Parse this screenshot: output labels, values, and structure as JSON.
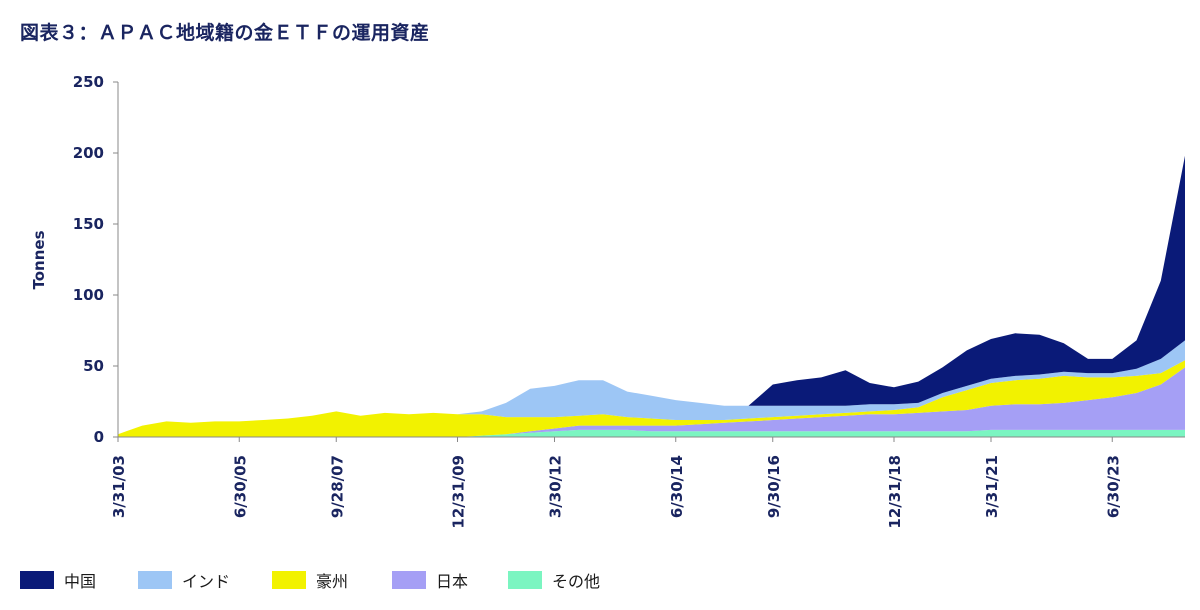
{
  "title": "図表３：ＡＰＡＣ地域籍の金ＥＴＦの運用資産",
  "chart_data": {
    "type": "area",
    "stacked": true,
    "title": "図表３：ＡＰＡＣ地域籍の金ＥＴＦの運用資産",
    "xlabel": "",
    "ylabel": "Tonnes",
    "ylim": [
      0,
      250
    ],
    "yticks": [
      0,
      50,
      100,
      150,
      200,
      250
    ],
    "xticks": [
      "3/31/03",
      "6/30/05",
      "9/28/07",
      "12/31/09",
      "3/30/12",
      "6/30/14",
      "9/30/16",
      "12/31/18",
      "3/31/21",
      "6/30/23"
    ],
    "legend_position": "bottom",
    "grid": false,
    "x": [
      "3/31/03",
      "9/30/03",
      "3/31/04",
      "9/30/04",
      "3/31/05",
      "9/30/05",
      "3/31/06",
      "9/30/06",
      "3/31/07",
      "9/30/07",
      "3/31/08",
      "9/30/08",
      "3/31/09",
      "9/30/09",
      "3/31/10",
      "9/30/10",
      "3/31/11",
      "9/30/11",
      "3/31/12",
      "9/30/12",
      "3/31/13",
      "9/30/13",
      "3/31/14",
      "9/30/14",
      "3/31/15",
      "9/30/15",
      "3/31/16",
      "9/30/16",
      "3/31/17",
      "9/30/17",
      "3/31/18",
      "9/30/18",
      "3/31/19",
      "9/30/19",
      "3/31/20",
      "9/30/20",
      "3/31/21",
      "9/30/21",
      "3/31/22",
      "9/30/22",
      "3/31/23",
      "9/30/23",
      "3/31/24",
      "9/30/24",
      "3/31/25"
    ],
    "series": [
      {
        "name": "その他",
        "color": "#7bf5c1",
        "values": [
          0,
          0,
          0,
          0,
          0,
          0,
          0,
          0,
          0,
          0,
          0,
          0,
          0,
          0,
          0,
          1,
          2,
          3,
          4,
          5,
          5,
          5,
          4,
          4,
          4,
          4,
          4,
          4,
          4,
          4,
          4,
          4,
          4,
          4,
          4,
          4,
          5,
          5,
          5,
          5,
          5,
          5,
          5,
          5,
          5
        ]
      },
      {
        "name": "日本",
        "color": "#a59ff5",
        "values": [
          0,
          0,
          0,
          0,
          0,
          0,
          0,
          0,
          0,
          0,
          0,
          0,
          0,
          0,
          0,
          0,
          0,
          1,
          2,
          3,
          3,
          3,
          4,
          4,
          5,
          6,
          7,
          8,
          9,
          10,
          11,
          12,
          12,
          13,
          14,
          15,
          17,
          18,
          18,
          19,
          21,
          23,
          26,
          32,
          44
        ]
      },
      {
        "name": "豪州",
        "color": "#f2f200",
        "values": [
          2,
          8,
          11,
          10,
          11,
          11,
          12,
          13,
          15,
          18,
          15,
          17,
          16,
          17,
          16,
          15,
          12,
          10,
          8,
          7,
          8,
          6,
          5,
          4,
          3,
          2,
          2,
          2,
          2,
          2,
          2,
          2,
          3,
          4,
          10,
          14,
          16,
          17,
          18,
          19,
          16,
          14,
          12,
          8,
          5
        ]
      },
      {
        "name": "インド",
        "color": "#9dc6f5",
        "values": [
          0,
          0,
          0,
          0,
          0,
          0,
          0,
          0,
          0,
          0,
          0,
          0,
          0,
          0,
          0,
          2,
          10,
          20,
          22,
          25,
          24,
          18,
          16,
          14,
          12,
          10,
          9,
          8,
          7,
          6,
          5,
          5,
          4,
          3,
          3,
          3,
          3,
          3,
          3,
          3,
          3,
          3,
          5,
          10,
          14
        ]
      },
      {
        "name": "中国",
        "color": "#0a1a78",
        "values": [
          0,
          0,
          0,
          0,
          0,
          0,
          0,
          0,
          0,
          0,
          0,
          0,
          0,
          0,
          0,
          0,
          0,
          0,
          0,
          0,
          0,
          0,
          0,
          0,
          0,
          0,
          0,
          15,
          18,
          20,
          25,
          15,
          12,
          15,
          18,
          25,
          28,
          30,
          28,
          20,
          10,
          10,
          20,
          55,
          130
        ]
      }
    ]
  }
}
